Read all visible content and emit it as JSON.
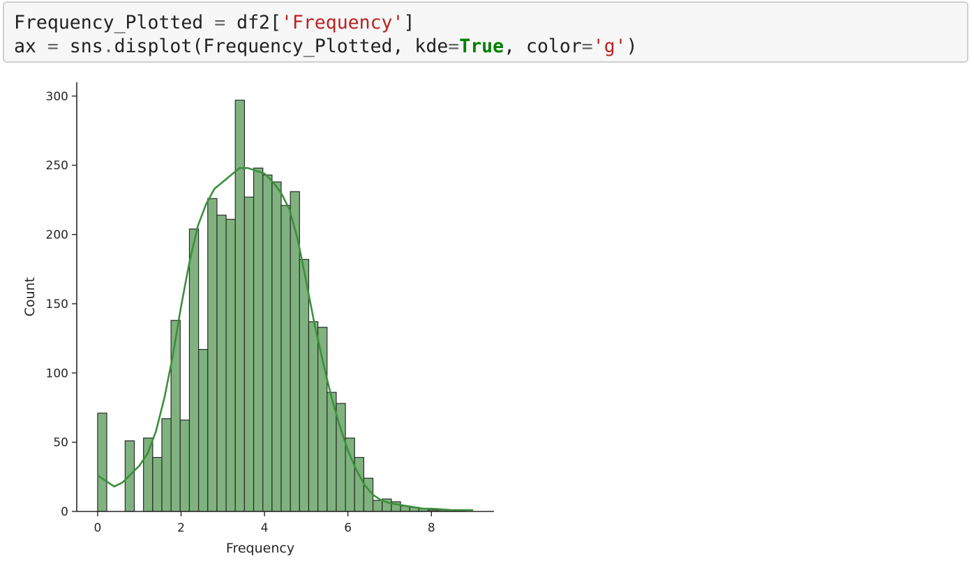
{
  "notebook": {
    "cell": {
      "code_lines": [
        [
          {
            "text": "Frequency_Plotted",
            "type": "plain"
          },
          {
            "text": " = ",
            "type": "op"
          },
          {
            "text": "df2[",
            "type": "plain"
          },
          {
            "text": "'Frequency'",
            "type": "str"
          },
          {
            "text": "]",
            "type": "plain"
          }
        ],
        [
          {
            "text": "ax",
            "type": "plain"
          },
          {
            "text": " = ",
            "type": "op"
          },
          {
            "text": "sns",
            "type": "plain"
          },
          {
            "text": ".",
            "type": "op"
          },
          {
            "text": "displot(Frequency_Plotted, kde",
            "type": "plain"
          },
          {
            "text": "=",
            "type": "op"
          },
          {
            "text": "True",
            "type": "kw"
          },
          {
            "text": ", color",
            "type": "plain"
          },
          {
            "text": "=",
            "type": "op"
          },
          {
            "text": "'g'",
            "type": "str"
          },
          {
            "text": ")",
            "type": "plain"
          }
        ]
      ]
    }
  },
  "chart_data": {
    "type": "bar",
    "title": "",
    "xlabel": "Frequency",
    "ylabel": "Count",
    "xlim": [
      -0.5,
      9.5
    ],
    "ylim": [
      0,
      310
    ],
    "x_ticks": [
      0,
      2,
      4,
      6,
      8
    ],
    "y_ticks": [
      0,
      50,
      100,
      150,
      200,
      250,
      300
    ],
    "bar_color": "#7fb27f",
    "bar_edge_color": "#2a2a2a",
    "kde_color": "#3c8f3c",
    "grid": false,
    "bin_edges": [
      0,
      0.22,
      0.44,
      0.66,
      0.88,
      1.1,
      1.32,
      1.54,
      1.76,
      1.98,
      2.2,
      2.42,
      2.64,
      2.86,
      3.08,
      3.3,
      3.52,
      3.74,
      3.96,
      4.18,
      4.4,
      4.62,
      4.84,
      5.06,
      5.28,
      5.5,
      5.72,
      5.94,
      6.16,
      6.38,
      6.6,
      6.82,
      7.04,
      7.26,
      7.48,
      7.7,
      7.92,
      8.14,
      8.36,
      8.58,
      8.8,
      9.02
    ],
    "counts": [
      71,
      0,
      0,
      51,
      0,
      53,
      39,
      67,
      138,
      66,
      204,
      117,
      226,
      214,
      211,
      297,
      227,
      248,
      243,
      238,
      221,
      231,
      182,
      137,
      133,
      86,
      78,
      53,
      39,
      24,
      8,
      9,
      7,
      4,
      3,
      2,
      1,
      1,
      1,
      1,
      0
    ],
    "kde": {
      "x": [
        0,
        0.2,
        0.4,
        0.6,
        0.8,
        1.0,
        1.2,
        1.4,
        1.6,
        1.8,
        2.0,
        2.2,
        2.4,
        2.6,
        2.8,
        3.0,
        3.2,
        3.4,
        3.6,
        3.8,
        4.0,
        4.2,
        4.4,
        4.6,
        4.8,
        5.0,
        5.2,
        5.4,
        5.6,
        5.8,
        6.0,
        6.2,
        6.4,
        6.6,
        6.8,
        7.0,
        7.2,
        7.4,
        7.6,
        7.8,
        8.0,
        8.5,
        9.0
      ],
      "y": [
        26,
        22,
        18,
        21,
        27,
        33,
        42,
        58,
        82,
        112,
        148,
        180,
        206,
        222,
        233,
        238,
        243,
        248,
        248,
        246,
        244,
        238,
        230,
        218,
        196,
        166,
        135,
        108,
        83,
        62,
        44,
        30,
        19,
        12,
        8,
        6,
        5,
        4,
        3,
        2,
        2,
        1,
        1
      ]
    }
  }
}
